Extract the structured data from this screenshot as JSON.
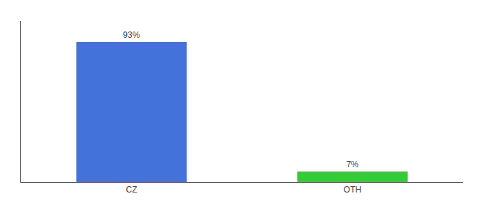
{
  "chart_data": {
    "type": "bar",
    "categories": [
      "CZ",
      "OTH"
    ],
    "values": [
      93,
      7
    ],
    "colors": [
      "#4472db",
      "#33cc33"
    ],
    "value_labels": [
      "93%",
      "7%"
    ],
    "data_labels": true,
    "ylim": [
      0,
      107
    ],
    "grid": false,
    "tick_labels": "x"
  }
}
